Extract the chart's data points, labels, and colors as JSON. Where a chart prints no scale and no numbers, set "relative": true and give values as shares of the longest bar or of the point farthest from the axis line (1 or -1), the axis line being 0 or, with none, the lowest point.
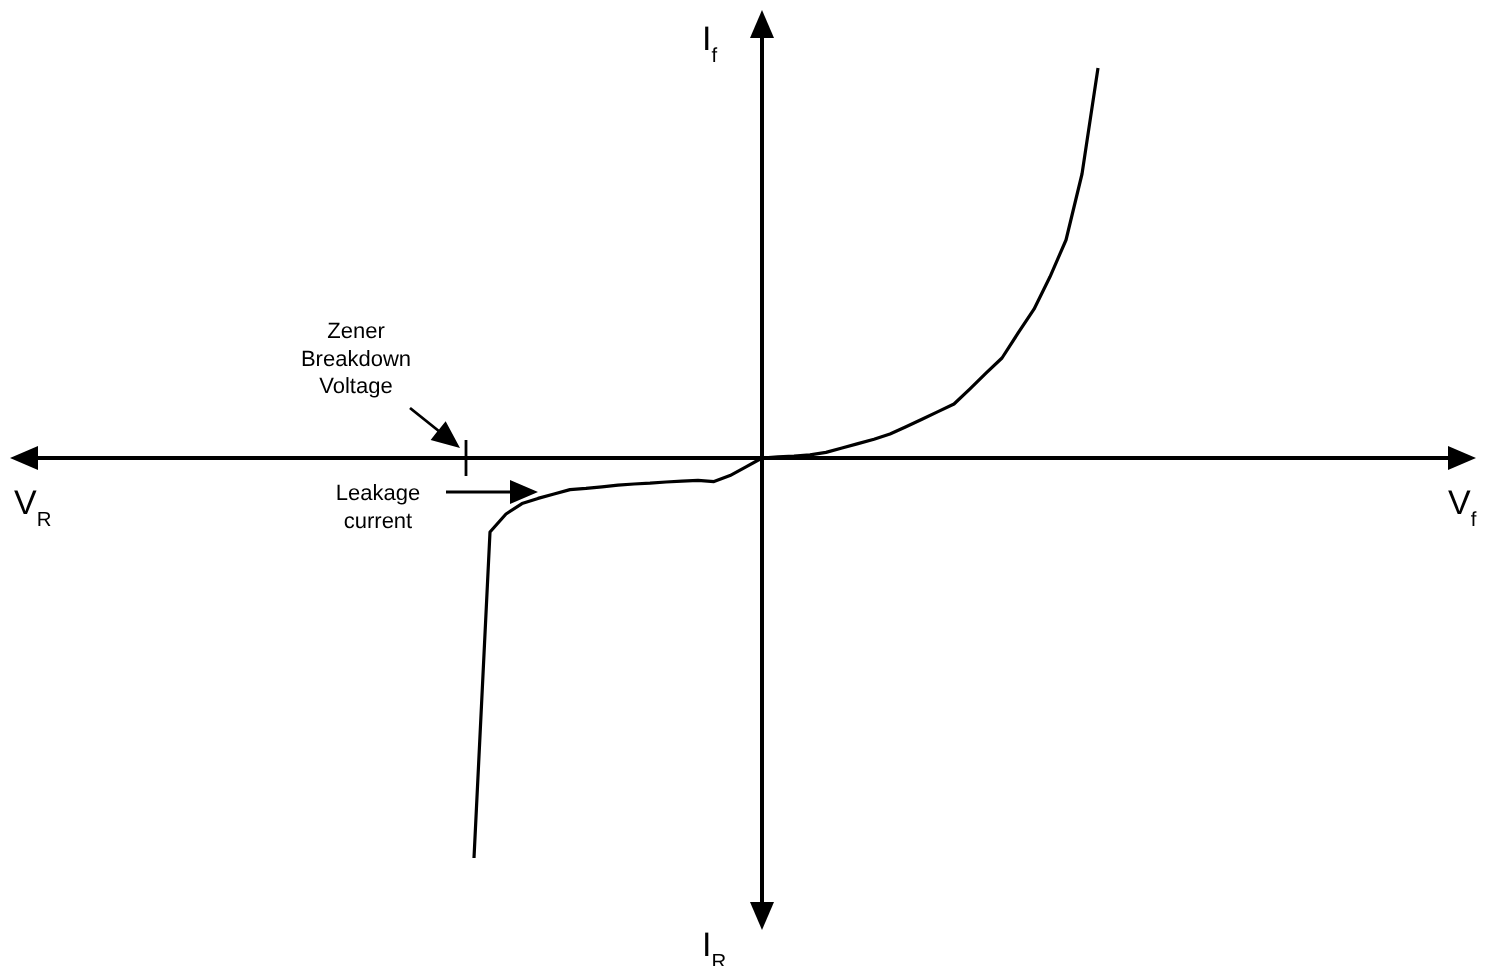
{
  "chart_data": {
    "type": "line",
    "relative": true,
    "marker": "none",
    "line_style": "solid",
    "categories": [
      null,
      null,
      null,
      null,
      null,
      null,
      null,
      null,
      null,
      null,
      null,
      null,
      null,
      null,
      null,
      null,
      null,
      null,
      null,
      null,
      null,
      null,
      null,
      null,
      null,
      null,
      null,
      null,
      null,
      null,
      null,
      null,
      null,
      null,
      null,
      null,
      null,
      null,
      null,
      null
    ],
    "annotations": [
      "V$_{R}$",
      "I$_{R}$",
      "Zener Breakdown Voltage",
      "Leakage current",
      "V$_{f}$",
      "I$_{f}$"
    ],
    "series": [
      {
        "color": "#000000",
        "values": [
          -1,
          -0.185,
          -0.14,
          -0.114,
          -0.101,
          -0.09,
          -0.079,
          -0.076,
          -0.072,
          -0.068,
          -0.065,
          -0.063,
          -0.06,
          -0.058,
          -0.056,
          -0.059,
          -0.044,
          -0.022,
          0,
          0.003,
          0.005,
          0.008,
          0.014,
          0.025,
          0.036,
          0.047,
          0.06,
          0.078,
          0.097,
          0.116,
          0.135,
          0.173,
          0.212,
          0.25,
          0.312,
          0.372,
          0.453,
          0.545,
          0.71,
          0.975
        ]
      }
    ]
  }
}
